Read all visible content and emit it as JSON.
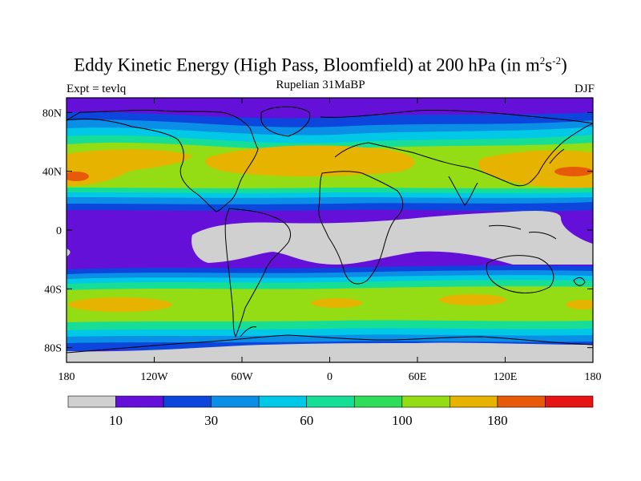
{
  "header": {
    "title_main": "Eddy Kinetic Energy (High Pass, Bloomfield) at 200 hPa (in m",
    "title_sup1": "2",
    "title_mid": "s",
    "title_sup2": "-2",
    "title_end": ")",
    "subtitle": "Rupelian  31MaBP",
    "left_label": "Expt = tevlq",
    "right_label": "DJF"
  },
  "map": {
    "lat_labels": [
      "80N",
      "40N",
      "0",
      "40S",
      "80S"
    ],
    "lat_values": [
      80,
      40,
      0,
      -40,
      -80
    ],
    "lon_labels": [
      "180",
      "120W",
      "60W",
      "0",
      "60E",
      "120E",
      "180"
    ],
    "lon_values": [
      -180,
      -120,
      -60,
      0,
      60,
      120,
      180
    ]
  },
  "colorbar": {
    "colors": [
      "#d0d0d0",
      "#6410d8",
      "#0c46dc",
      "#0a8ee6",
      "#00c8e6",
      "#16de96",
      "#2ede5a",
      "#94dc14",
      "#e6b400",
      "#e65a0a",
      "#e61414"
    ],
    "labels": [
      "10",
      "30",
      "60",
      "100",
      "180"
    ],
    "label_boundaries": [
      1,
      3,
      5,
      7,
      9
    ]
  }
}
